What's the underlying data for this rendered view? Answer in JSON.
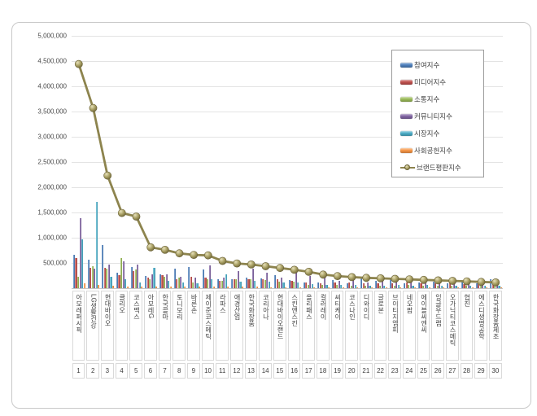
{
  "y_axis": {
    "tick_labels": [
      "5,000,000",
      "4,500,000",
      "4,000,000",
      "3,500,000",
      "3,000,000",
      "2,500,000",
      "2,000,000",
      "1,500,000",
      "1,000,000",
      "500,000"
    ]
  },
  "colors": {
    "grid": "#e3e3e3",
    "axis": "#c4c4c4",
    "frame_border": "#c9c9c9",
    "legend_border": "#9b9b9b",
    "text": "#3f3f3f"
  },
  "chart_data": {
    "type": "bar",
    "note": "grouped bar chart with overlaid line series (brand reputation index), legend upper right, light horizontal gridlines",
    "ylim": [
      0,
      5000000
    ],
    "y_tick_step": 500000,
    "grid": true,
    "legend_position": "upper-right",
    "categories": [
      "아모레퍼시픽",
      "LG생활건강",
      "현대바이오",
      "클리오",
      "코스맥스",
      "아모레G",
      "한국콜마",
      "토니모리",
      "바른손",
      "제이준코스메틱",
      "라파스",
      "애경산업",
      "한국화장품",
      "코리아나",
      "현대바이오랜드",
      "스킨앤스킨",
      "올리패스",
      "컬러레이",
      "씨티케이",
      "코스나인",
      "디와이디",
      "글로본",
      "브이티지엠피",
      "네오팜",
      "에이블씨엔씨",
      "잉글우드랩",
      "오가닉티코스메틱",
      "협진",
      "에스디생명공학",
      "한국화장품제조"
    ],
    "ranks": [
      "1",
      "2",
      "3",
      "4",
      "5",
      "6",
      "7",
      "8",
      "9",
      "10",
      "11",
      "12",
      "13",
      "14",
      "15",
      "16",
      "17",
      "18",
      "19",
      "20",
      "21",
      "22",
      "23",
      "24",
      "25",
      "26",
      "27",
      "28",
      "29",
      "30"
    ],
    "series": [
      {
        "name": "참여지수",
        "type": "bar",
        "color": "#4F81BD",
        "values": [
          660000,
          565000,
          860000,
          300000,
          420000,
          240000,
          275000,
          380000,
          420000,
          365000,
          170000,
          175000,
          205000,
          195000,
          255000,
          155000,
          120000,
          105000,
          160000,
          100000,
          205000,
          150000,
          195000,
          100000,
          110000,
          130000,
          90000,
          150000,
          100000,
          175000
        ]
      },
      {
        "name": "미디어지수",
        "type": "bar",
        "color": "#C0504D",
        "values": [
          600000,
          400000,
          400000,
          260000,
          340000,
          205000,
          255000,
          185000,
          220000,
          205000,
          150000,
          180000,
          185000,
          175000,
          170000,
          150000,
          110000,
          100000,
          120000,
          110000,
          90000,
          100000,
          100000,
          120000,
          100000,
          95000,
          135000,
          85000,
          90000,
          95000
        ]
      },
      {
        "name": "소통지수",
        "type": "bar",
        "color": "#9BBB59",
        "values": [
          230000,
          435000,
          380000,
          590000,
          365000,
          185000,
          230000,
          205000,
          120000,
          185000,
          140000,
          170000,
          170000,
          155000,
          135000,
          130000,
          70000,
          60000,
          60000,
          55000,
          50000,
          50000,
          55000,
          60000,
          55000,
          50000,
          45000,
          45000,
          45000,
          50000
        ]
      },
      {
        "name": "커뮤니티지수",
        "type": "bar",
        "color": "#8064A2",
        "values": [
          1380000,
          390000,
          470000,
          535000,
          470000,
          275000,
          275000,
          220000,
          205000,
          445000,
          205000,
          345000,
          380000,
          310000,
          205000,
          390000,
          245000,
          340000,
          150000,
          230000,
          120000,
          180000,
          150000,
          140000,
          125000,
          110000,
          100000,
          95000,
          105000,
          120000
        ]
      },
      {
        "name": "시장지수",
        "type": "bar",
        "color": "#4BACC6",
        "values": [
          965000,
          1705000,
          230000,
          175000,
          120000,
          400000,
          150000,
          120000,
          90000,
          170000,
          270000,
          135000,
          150000,
          135000,
          115000,
          115000,
          80000,
          70000,
          70000,
          60000,
          55000,
          55000,
          60000,
          55000,
          60000,
          50000,
          50000,
          45000,
          50000,
          55000
        ]
      },
      {
        "name": "사회공헌지수",
        "type": "bar",
        "color": "#F79646",
        "values": [
          100000,
          60000,
          50000,
          30000,
          30000,
          30000,
          30000,
          30000,
          25000,
          25000,
          25000,
          25000,
          25000,
          20000,
          20000,
          20000,
          15000,
          15000,
          15000,
          15000,
          15000,
          15000,
          15000,
          15000,
          15000,
          10000,
          10000,
          10000,
          10000,
          10000
        ]
      },
      {
        "name": "브랜드평판지수",
        "type": "line",
        "color": "#8D844E",
        "marker_fill": "#A89F63",
        "values": [
          4440000,
          3570000,
          2230000,
          1490000,
          1420000,
          810000,
          760000,
          690000,
          660000,
          650000,
          540000,
          490000,
          470000,
          435000,
          400000,
          365000,
          325000,
          270000,
          240000,
          220000,
          205000,
          195000,
          185000,
          175000,
          165000,
          155000,
          145000,
          135000,
          125000,
          115000
        ]
      }
    ]
  }
}
